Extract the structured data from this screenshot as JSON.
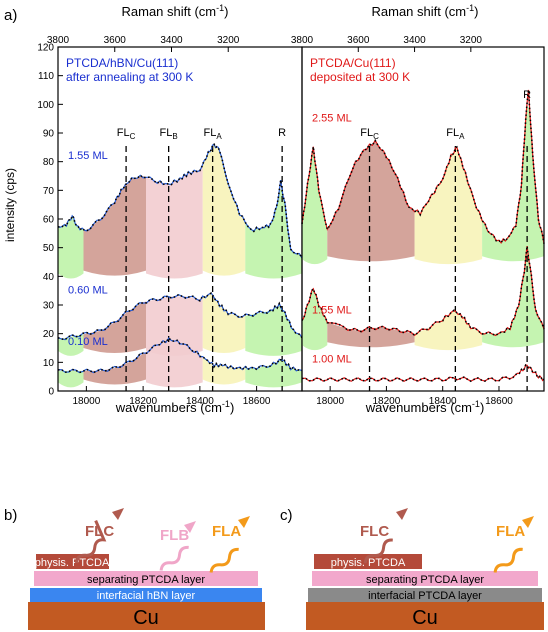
{
  "panel_labels": {
    "a": "a)",
    "b": "b)",
    "c": "c)"
  },
  "colors": {
    "blue": "#1a2fd0",
    "red": "#e01818",
    "fl_c": "#b05a4e",
    "fl_b": "#f0a6c8",
    "fl_a": "#f39a1a",
    "rose_fill": "#cf9a90",
    "pink_fill": "#f2cccf",
    "yellow_fill": "#f7f3b8",
    "green_fill": "#bff3a8",
    "layer_phys": "#b44a3a",
    "layer_sep": "#f2a8cc",
    "layer_hbn": "#3a86f0",
    "layer_int_ptcda": "#8a8a8a",
    "layer_cu": "#c25a22"
  },
  "chart_data": [
    {
      "type": "line",
      "panel": "left",
      "title_lines": [
        "PTCDA/hBN/Cu(111)",
        "after annealing at 300 K"
      ],
      "xlabel": "wavenumbers (cm-1)",
      "x2label": "Raman shift (cm-1)",
      "ylabel": "intensity (cps)",
      "xlim": [
        17900,
        18760
      ],
      "ylim": [
        0,
        120
      ],
      "x_ticks": [
        "18000",
        "18200",
        "18400",
        "18600"
      ],
      "x2_ticks": [
        "3800",
        "3600",
        "3400",
        "3200"
      ],
      "y_ticks": [
        "0",
        "10",
        "20",
        "30",
        "40",
        "50",
        "60",
        "70",
        "80",
        "90",
        "100",
        "110",
        "120"
      ],
      "peak_labels": {
        "fl_c": "FLC",
        "fl_b": "FLB",
        "fl_a": "FLA",
        "r": "R"
      },
      "peak_positions": {
        "fl_c": 18140,
        "fl_b": 18290,
        "fl_a": 18445,
        "r": 18690
      },
      "series": [
        {
          "name": "1.55 ML",
          "x": [
            17900,
            17930,
            17950,
            17970,
            18000,
            18050,
            18100,
            18130,
            18160,
            18200,
            18250,
            18290,
            18330,
            18360,
            18400,
            18430,
            18450,
            18470,
            18500,
            18540,
            18580,
            18620,
            18650,
            18670,
            18685,
            18700,
            18720,
            18760
          ],
          "y": [
            57,
            58,
            61,
            57,
            56,
            60,
            66,
            71,
            74,
            75,
            73,
            72,
            74,
            76,
            77,
            83,
            86,
            84,
            72,
            62,
            56,
            57,
            58,
            64,
            73,
            65,
            49,
            47
          ]
        },
        {
          "name": "0.60 ML",
          "x": [
            17900,
            17950,
            18000,
            18050,
            18100,
            18150,
            18200,
            18250,
            18300,
            18350,
            18400,
            18440,
            18470,
            18500,
            18550,
            18600,
            18650,
            18680,
            18700,
            18730,
            18760
          ],
          "y": [
            18,
            19,
            20,
            21,
            24,
            28,
            31,
            32,
            33,
            33,
            32,
            34,
            30,
            27,
            26,
            27,
            28,
            30,
            27,
            21,
            19
          ]
        },
        {
          "name": "0.10 ML",
          "x": [
            17900,
            17950,
            18000,
            18050,
            18100,
            18150,
            18200,
            18250,
            18290,
            18330,
            18380,
            18420,
            18450,
            18480,
            18520,
            18560,
            18600,
            18650,
            18690,
            18720,
            18760
          ],
          "y": [
            7,
            7,
            7,
            7,
            8,
            10,
            13,
            16,
            18,
            17,
            14,
            11,
            9,
            9,
            8,
            8,
            8,
            9,
            11,
            8,
            7
          ]
        }
      ]
    },
    {
      "type": "line",
      "panel": "right",
      "title_lines": [
        "PTCDA/Cu(111)",
        "deposited at 300 K"
      ],
      "xlabel": "wavenumbers (cm-1)",
      "x2label": "Raman shift (cm-1)",
      "xlim": [
        17900,
        18760
      ],
      "ylim": [
        0,
        120
      ],
      "x_ticks": [
        "18000",
        "18200",
        "18400",
        "18600"
      ],
      "x2_ticks": [
        "3800",
        "3600",
        "3400",
        "3200"
      ],
      "peak_labels": {
        "fl_c": "FLC",
        "fl_a": "FLA",
        "r": "R"
      },
      "peak_positions": {
        "fl_c": 18140,
        "fl_a": 18445,
        "r": 18700
      },
      "series": [
        {
          "name": "2.55 ML",
          "x": [
            17900,
            17920,
            17940,
            17960,
            17990,
            18030,
            18080,
            18120,
            18160,
            18200,
            18240,
            18280,
            18320,
            18360,
            18400,
            18430,
            18450,
            18480,
            18520,
            18560,
            18600,
            18630,
            18660,
            18680,
            18695,
            18705,
            18720,
            18740,
            18760
          ],
          "y": [
            58,
            72,
            85,
            70,
            56,
            64,
            78,
            84,
            87,
            82,
            74,
            64,
            62,
            68,
            74,
            82,
            85,
            76,
            64,
            56,
            52,
            53,
            58,
            72,
            95,
            105,
            82,
            60,
            52
          ]
        },
        {
          "name": "1.55 ML",
          "x": [
            17900,
            17920,
            17940,
            17960,
            17990,
            18050,
            18100,
            18150,
            18200,
            18250,
            18300,
            18350,
            18400,
            18440,
            18470,
            18500,
            18550,
            18600,
            18640,
            18670,
            18690,
            18700,
            18710,
            18730,
            18760
          ],
          "y": [
            24,
            30,
            36,
            30,
            24,
            22,
            21,
            22,
            22,
            21,
            20,
            22,
            25,
            28,
            26,
            22,
            20,
            20,
            22,
            30,
            42,
            50,
            44,
            28,
            22
          ]
        },
        {
          "name": "1.00 ML",
          "x": [
            17900,
            17950,
            18000,
            18050,
            18100,
            18150,
            18200,
            18250,
            18300,
            18350,
            18400,
            18450,
            18500,
            18550,
            18600,
            18650,
            18680,
            18700,
            18720,
            18740,
            18760
          ],
          "y": [
            4,
            4,
            4,
            4,
            4,
            4,
            4,
            4,
            4,
            4,
            4,
            4.5,
            4,
            4,
            4,
            5,
            7,
            9,
            7,
            5,
            4
          ]
        }
      ]
    }
  ],
  "diagram_b": {
    "fl_c": "FLC",
    "fl_b": "FLB",
    "fl_a": "FLA",
    "layers": [
      "physis. PTCDA",
      "separating PTCDA layer",
      "interfacial hBN layer",
      "Cu"
    ]
  },
  "diagram_c": {
    "fl_c": "FLC",
    "fl_a": "FLA",
    "layers": [
      "physis. PTCDA",
      "separating PTCDA layer",
      "interfacial PTCDA layer",
      "Cu"
    ]
  }
}
